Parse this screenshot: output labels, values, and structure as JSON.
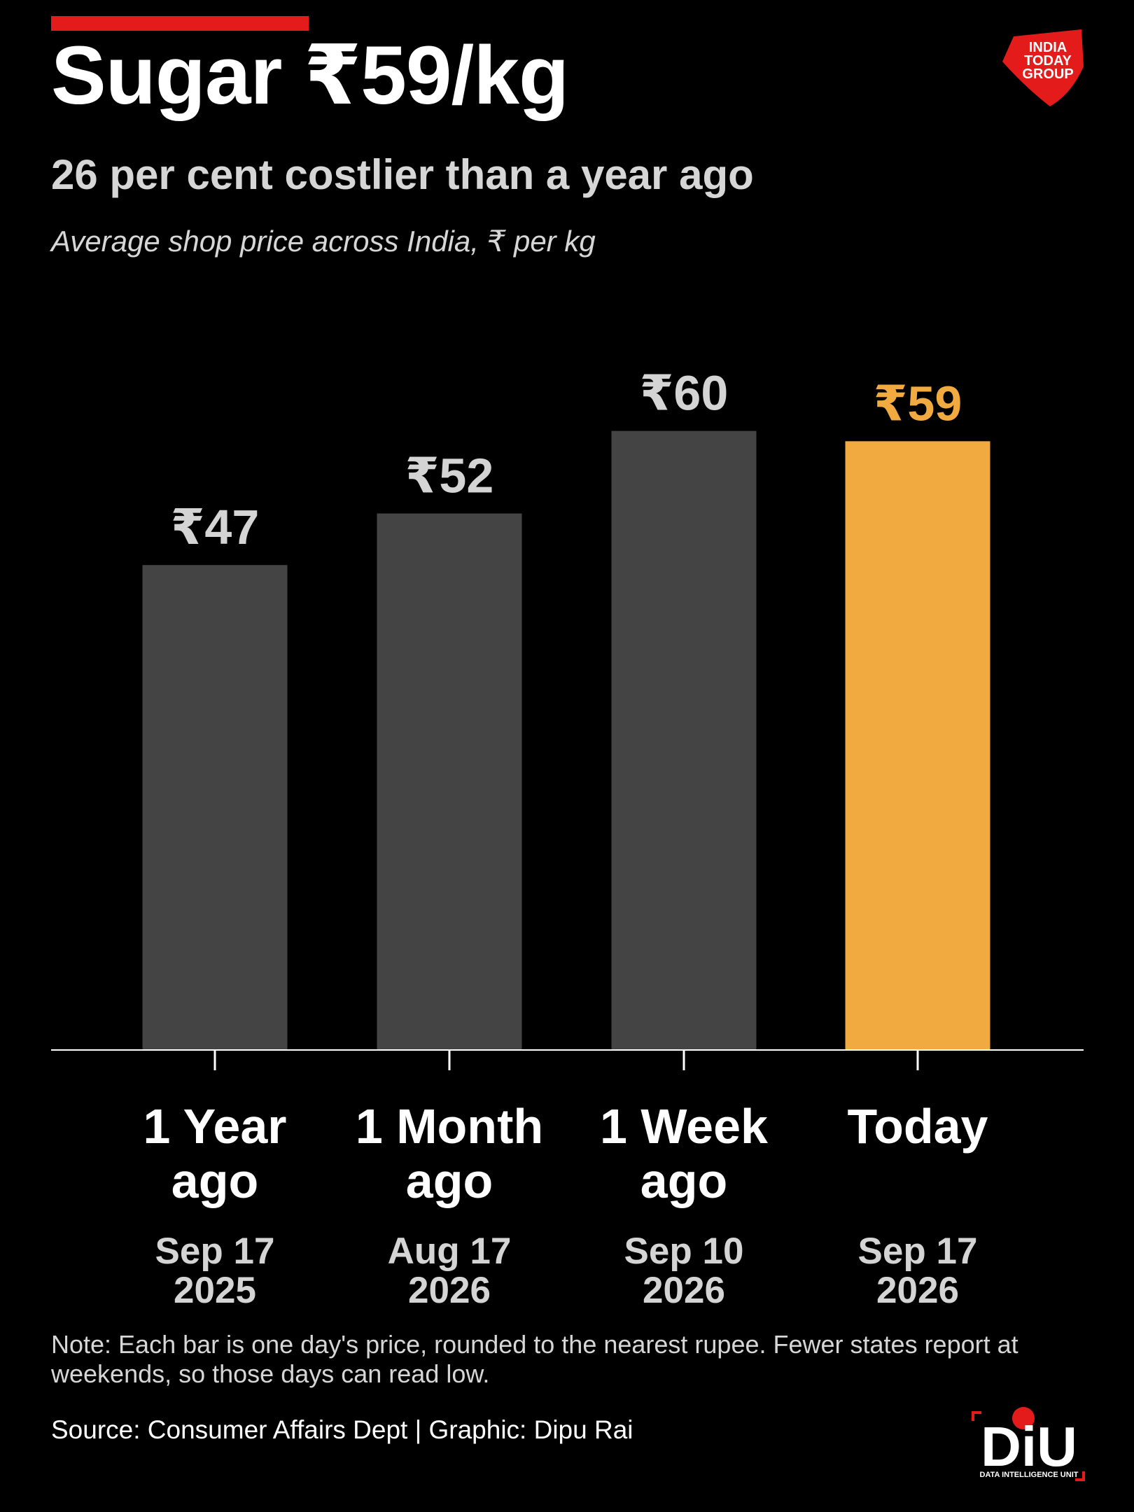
{
  "chart_data": {
    "type": "bar",
    "title": "Sugar ₹59/kg",
    "subtitle": "26 per cent costlier than a year ago",
    "axis_note": "Average shop price across India, ₹ per kg",
    "categories": [
      "1 Year ago",
      "1 Month ago",
      "1 Week ago",
      "Today"
    ],
    "dates": [
      "Sep 17 2025",
      "Aug 17 2026",
      "Sep 10 2026",
      "Sep 17 2026"
    ],
    "values": [
      47,
      52,
      60,
      59
    ],
    "value_labels": [
      "₹47",
      "₹52",
      "₹60",
      "₹59"
    ],
    "colors": [
      "#444444",
      "#444444",
      "#444444",
      "#f0aa3f"
    ],
    "label_colors": [
      "#d4d4d4",
      "#d4d4d4",
      "#d4d4d4",
      "#f0aa3f"
    ],
    "ylim": [
      0,
      100
    ],
    "grid": false,
    "note": "Note: Each bar is one day's price, rounded to the nearest rupee. Fewer states report at weekends, so those days can read low.",
    "source": "Source: Consumer Affairs Dept | Graphic: Dipu Rai",
    "publisher_logo": "INDIA TODAY GROUP",
    "unit_logo": "DiU",
    "unit_logo_caption": "DATA INTELLIGENCE UNIT"
  }
}
